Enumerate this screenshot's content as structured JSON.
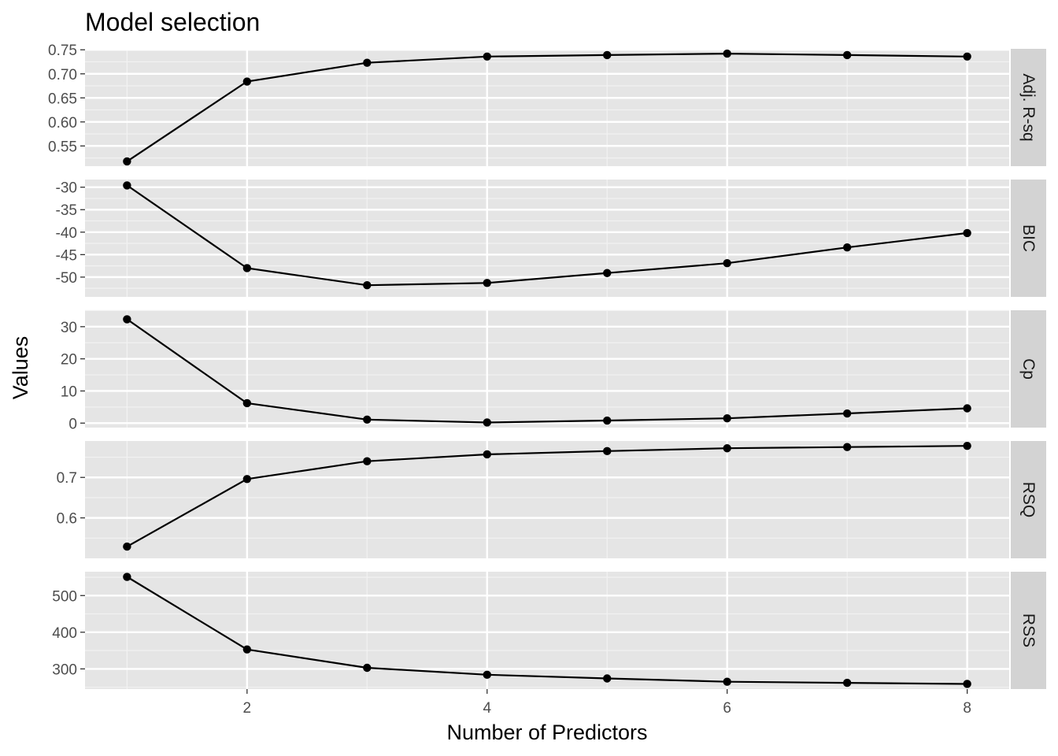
{
  "chart_data": {
    "type": "line",
    "title": "Model selection",
    "xlabel": "Number of Predictors",
    "ylabel": "Values",
    "x": [
      1,
      2,
      3,
      4,
      5,
      6,
      7,
      8
    ],
    "x_ticks": [
      2,
      4,
      6,
      8
    ],
    "xlim": [
      0.65,
      8.35
    ],
    "grid": true,
    "legend": "none",
    "point_color": "#000000",
    "line_color": "#000000",
    "panel_background": "#e5e5e5",
    "strip_background": "#d3d3d3",
    "facets": [
      {
        "name": "Adj. R-sq",
        "values": [
          0.518,
          0.684,
          0.723,
          0.736,
          0.739,
          0.742,
          0.739,
          0.736
        ],
        "ylim": [
          0.508,
          0.752
        ],
        "ticks": [
          0.55,
          0.6,
          0.65,
          0.7,
          0.75
        ],
        "tick_labels": [
          "0.55",
          "0.60",
          "0.65",
          "0.70",
          "0.75"
        ]
      },
      {
        "name": "BIC",
        "values": [
          -29.6,
          -48.0,
          -51.8,
          -51.3,
          -49.1,
          -46.9,
          -43.4,
          -40.2
        ],
        "ylim": [
          -54.4,
          -28.3
        ],
        "ticks": [
          -50,
          -45,
          -40,
          -35,
          -30
        ],
        "tick_labels": [
          "-50",
          "-45",
          "-40",
          "-35",
          "-30"
        ]
      },
      {
        "name": "Cp",
        "values": [
          32.3,
          6.2,
          1.1,
          0.2,
          0.8,
          1.5,
          3.0,
          4.6
        ],
        "ylim": [
          -1.4,
          35.1
        ],
        "ticks": [
          0,
          10,
          20,
          30
        ],
        "tick_labels": [
          "0",
          "10",
          "20",
          "30"
        ]
      },
      {
        "name": "RSQ",
        "values": [
          0.529,
          0.696,
          0.74,
          0.757,
          0.765,
          0.772,
          0.775,
          0.778
        ],
        "ylim": [
          0.5,
          0.79
        ],
        "ticks": [
          0.6,
          0.7
        ],
        "tick_labels": [
          "0.6",
          "0.7"
        ]
      },
      {
        "name": "RSS",
        "values": [
          551,
          353,
          303,
          284,
          274,
          265,
          262,
          259
        ],
        "ylim": [
          245,
          565
        ],
        "ticks": [
          300,
          400,
          500
        ],
        "tick_labels": [
          "300",
          "400",
          "500"
        ]
      }
    ]
  }
}
